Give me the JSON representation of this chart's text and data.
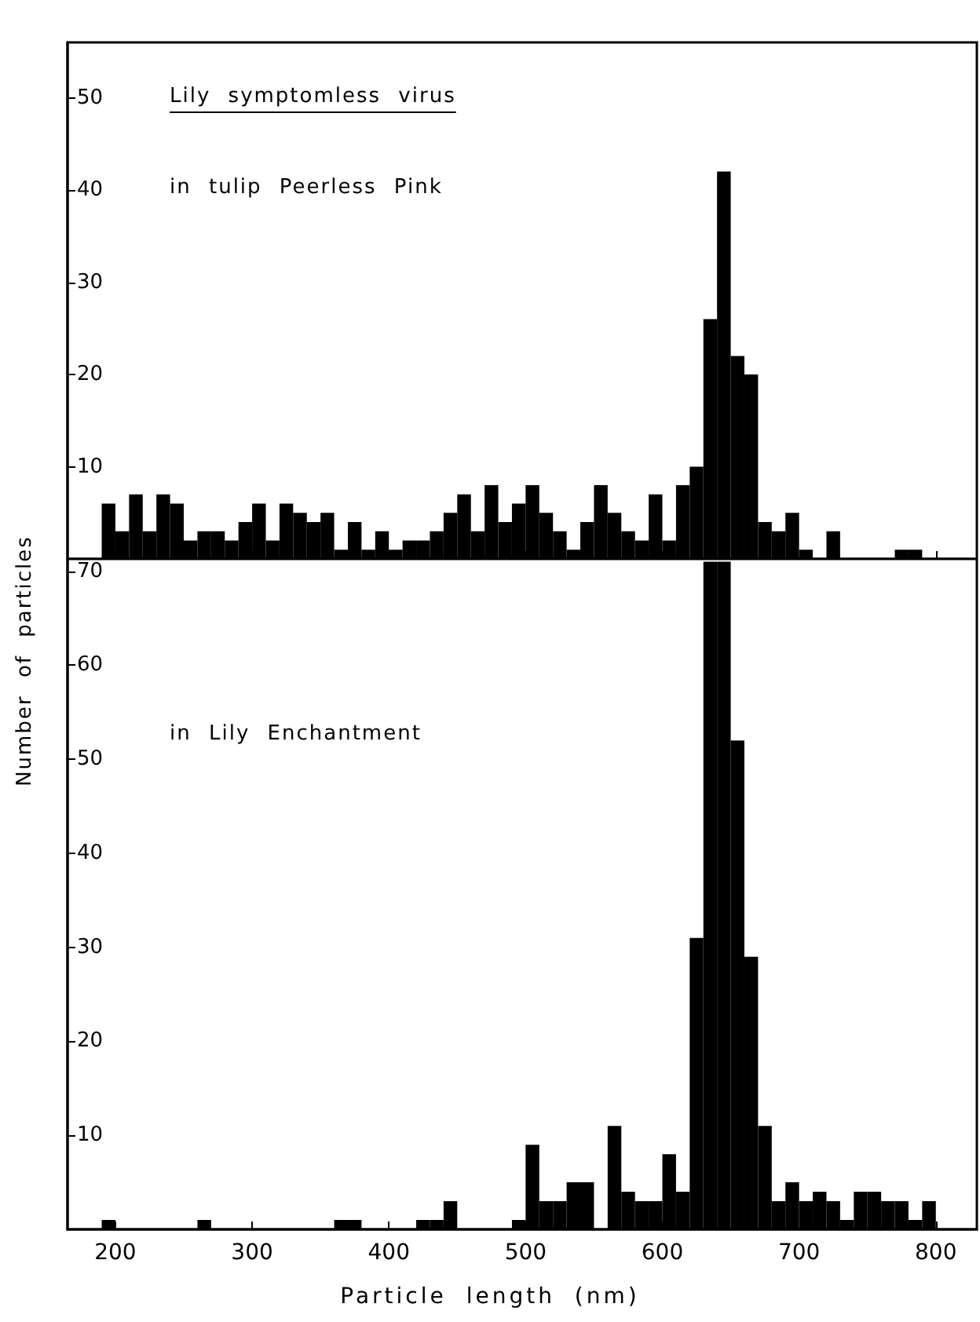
{
  "chart_data": [
    {
      "type": "histogram",
      "title": "Lily symptomless virus",
      "annotations": [
        "in tulip Peerless Pink"
      ],
      "ylabel": "Number of particles",
      "bins": [
        190,
        200,
        210,
        220,
        230,
        240,
        250,
        260,
        270,
        280,
        290,
        300,
        310,
        320,
        330,
        340,
        350,
        360,
        370,
        380,
        390,
        400,
        410,
        420,
        430,
        440,
        450,
        460,
        470,
        480,
        490,
        500,
        510,
        520,
        530,
        540,
        550,
        560,
        570,
        580,
        590,
        600,
        610,
        620,
        630,
        640,
        650,
        660,
        670,
        680,
        690,
        700,
        710,
        720,
        730,
        740,
        750,
        760,
        770,
        780,
        790,
        800
      ],
      "values": [
        6,
        3,
        7,
        3,
        7,
        6,
        2,
        3,
        3,
        2,
        4,
        6,
        2,
        6,
        5,
        4,
        5,
        1,
        4,
        1,
        3,
        1,
        2,
        2,
        3,
        5,
        7,
        3,
        8,
        4,
        6,
        8,
        5,
        3,
        1,
        4,
        8,
        5,
        3,
        2,
        7,
        2,
        8,
        10,
        26,
        42,
        22,
        20,
        4,
        3,
        5,
        1,
        0,
        3,
        0,
        0,
        0,
        0,
        1,
        1,
        0
      ],
      "color": "#000000",
      "xlim": [
        165,
        830
      ],
      "xticks": [
        200,
        300,
        400,
        500,
        600,
        700,
        800
      ],
      "ylim": [
        0,
        56
      ],
      "yticks": [
        10,
        20,
        30,
        40,
        50
      ],
      "tick_labels": "y",
      "grid": false
    },
    {
      "type": "histogram",
      "annotations": [
        "in Lily Enchantment"
      ],
      "xlabel": "Particle length (nm)",
      "bins": [
        190,
        200,
        210,
        220,
        230,
        240,
        250,
        260,
        270,
        280,
        290,
        300,
        310,
        320,
        330,
        340,
        350,
        360,
        370,
        380,
        390,
        400,
        410,
        420,
        430,
        440,
        450,
        460,
        470,
        480,
        490,
        500,
        510,
        520,
        530,
        540,
        550,
        560,
        570,
        580,
        590,
        600,
        610,
        620,
        630,
        640,
        650,
        660,
        670,
        680,
        690,
        700,
        710,
        720,
        730,
        740,
        750,
        760,
        770,
        780,
        790,
        800
      ],
      "values": [
        1,
        0,
        0,
        0,
        0,
        0,
        0,
        1,
        0,
        0,
        0,
        0,
        0,
        0,
        0,
        0,
        0,
        1,
        1,
        0,
        0,
        0,
        0,
        1,
        1,
        3,
        0,
        0,
        0,
        0,
        1,
        9,
        3,
        3,
        5,
        5,
        0,
        11,
        4,
        3,
        3,
        8,
        4,
        31,
        71,
        71,
        52,
        29,
        11,
        3,
        5,
        3,
        4,
        3,
        1,
        4,
        4,
        3,
        3,
        1,
        3
      ],
      "color": "#000000",
      "xlim": [
        165,
        830
      ],
      "xticks": [
        200,
        300,
        400,
        500,
        600,
        700,
        800
      ],
      "ylim": [
        0,
        71.3
      ],
      "yticks": [
        10,
        20,
        30,
        40,
        50,
        60,
        70
      ],
      "grid": false
    }
  ]
}
